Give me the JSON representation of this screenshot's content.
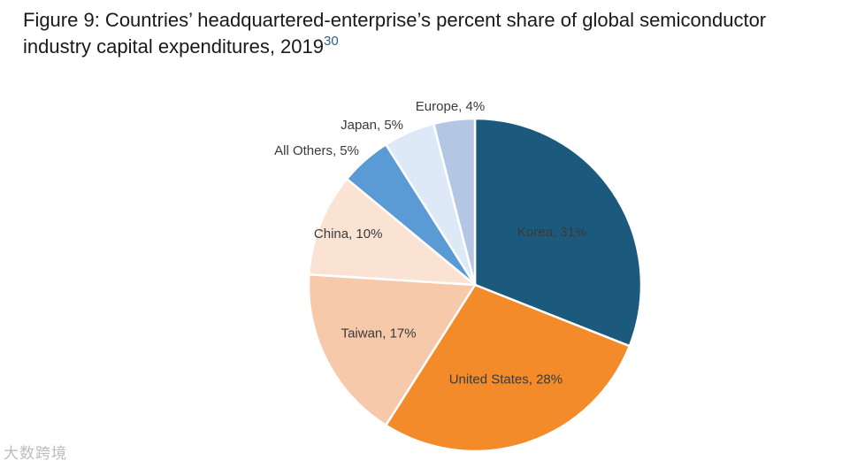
{
  "figure": {
    "title": "Figure 9: Countries’ headquartered-enterprise’s percent share of global semiconductor industry capital expenditures, 2019",
    "footnote_ref": "30"
  },
  "watermark": {
    "text": "大数跨境"
  },
  "chart_data": {
    "type": "pie",
    "title": "Figure 9: Countries’ headquartered-enterprise’s percent share of global semiconductor industry capital expenditures, 2019",
    "unit": "%",
    "slices": [
      {
        "name": "Korea",
        "value": 31,
        "label": "Korea, 31%",
        "color": "#1b5a7c",
        "label_color": "#ffffff",
        "label_placement": "inside"
      },
      {
        "name": "United States",
        "value": 28,
        "label": "United States, 28%",
        "color": "#f38b2a",
        "label_color": "#3a3a3a",
        "label_placement": "inside"
      },
      {
        "name": "Taiwan",
        "value": 17,
        "label": "Taiwan, 17%",
        "color": "#f5c9aa",
        "label_color": "#3a3a3a",
        "label_placement": "inside"
      },
      {
        "name": "China",
        "value": 10,
        "label": "China, 10%",
        "color": "#fae3d3",
        "label_color": "#3a3a3a",
        "label_placement": "inside"
      },
      {
        "name": "All Others",
        "value": 5,
        "label": "All Others, 5%",
        "color": "#5b9bd5",
        "label_color": "#3a3a3a",
        "label_placement": "outside"
      },
      {
        "name": "Japan",
        "value": 5,
        "label": "Japan, 5%",
        "color": "#dde9f6",
        "label_color": "#3a3a3a",
        "label_placement": "outside"
      },
      {
        "name": "Europe",
        "value": 4,
        "label": "Europe, 4%",
        "color": "#b3c7e5",
        "label_color": "#3a3a3a",
        "label_placement": "outside"
      }
    ],
    "start_angle": "12 o'clock",
    "direction": "clockwise",
    "legend": "none"
  }
}
